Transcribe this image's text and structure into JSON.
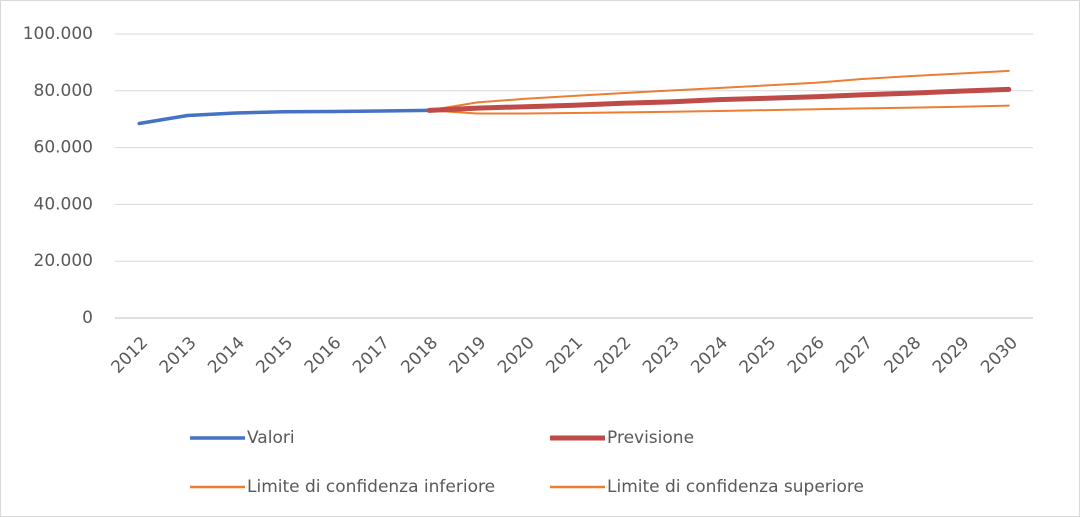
{
  "chart_data": {
    "type": "line",
    "categories": [
      "2012",
      "2013",
      "2014",
      "2015",
      "2016",
      "2017",
      "2018",
      "2019",
      "2020",
      "2021",
      "2022",
      "2023",
      "2024",
      "2025",
      "2026",
      "2027",
      "2028",
      "2029",
      "2030"
    ],
    "series": [
      {
        "name": "Valori",
        "color": "#4472c4",
        "values": [
          68500,
          71300,
          72200,
          72600,
          72700,
          72900,
          73100,
          null,
          null,
          null,
          null,
          null,
          null,
          null,
          null,
          null,
          null,
          null,
          null
        ]
      },
      {
        "name": "Previsione",
        "color": "#be4b48",
        "values": [
          null,
          null,
          null,
          null,
          null,
          null,
          73100,
          73900,
          74400,
          74900,
          75600,
          76100,
          76900,
          77400,
          77900,
          78600,
          79200,
          79900,
          80500
        ]
      },
      {
        "name": "Limite di confidenza inferiore",
        "color": "#ed7d31",
        "values": [
          null,
          null,
          null,
          null,
          null,
          null,
          73100,
          72000,
          72000,
          72200,
          72400,
          72600,
          72900,
          73200,
          73500,
          73800,
          74100,
          74400,
          74800
        ]
      },
      {
        "name": "Limite di confidenza superiore",
        "color": "#ed7d31",
        "values": [
          null,
          null,
          null,
          null,
          null,
          null,
          73100,
          75900,
          77200,
          78200,
          79200,
          80100,
          81000,
          81900,
          82800,
          84200,
          85200,
          86100,
          87000
        ]
      }
    ],
    "ylim": [
      0,
      100000
    ],
    "yticks": [
      0,
      {
        "value": 20000,
        "label": "20.000"
      },
      {
        "value": 40000,
        "label": "40.000"
      },
      {
        "value": 60000,
        "label": "60.000"
      },
      {
        "value": 80000,
        "label": "80.000"
      },
      {
        "value": 100000,
        "label": "100.000"
      }
    ],
    "grid": true,
    "legend": "bottom"
  }
}
